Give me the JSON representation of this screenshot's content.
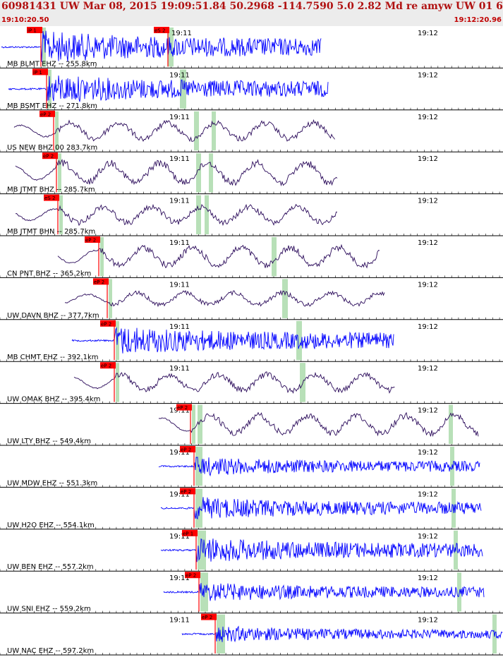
{
  "header": {
    "title": "60981431 UW Mar 08, 2015 19:09:51.84    50.2968 -114.7590  5.0 2.82 Md re amyw UW 01   6",
    "time_start": "19:10:20.50",
    "time_end": "19:12:20.96"
  },
  "colors": {
    "header_text": "#b01010",
    "trace_blue": "#0000ff",
    "trace_dark": "#2a0a5a",
    "pick": "#ff0000",
    "window": "#b8e0b8"
  },
  "minute_labels": {
    "m1": "19:11",
    "m2": "19:12"
  },
  "traces": [
    {
      "label": "MB BLMT EHZ -- 255.8km",
      "picks": [
        "iP 1",
        "eS 2"
      ],
      "color": "blue"
    },
    {
      "label": "MB BSMT EHZ -- 271.8km",
      "picks": [
        "iP 1"
      ],
      "color": "blue"
    },
    {
      "label": "US NEW BHZ 00 283.7km",
      "picks": [
        "eP 2"
      ],
      "color": "dark"
    },
    {
      "label": "MB JTMT BHZ -- 285.7km",
      "picks": [
        "eP 2"
      ],
      "color": "dark"
    },
    {
      "label": "MB JTMT BHN -- 285.7km",
      "picks": [
        "eS 2"
      ],
      "color": "dark"
    },
    {
      "label": "CN PNT BHZ -- 365.2km",
      "picks": [
        "eP 2"
      ],
      "color": "dark"
    },
    {
      "label": "UW DAVN BHZ -- 377.7km",
      "picks": [
        "eP 2"
      ],
      "color": "dark"
    },
    {
      "label": "MB CHMT EHZ -- 392.1km",
      "picks": [
        "eP 2"
      ],
      "color": "blue"
    },
    {
      "label": "UW OMAK BHZ -- 395.4km",
      "picks": [
        "eP 2"
      ],
      "color": "dark"
    },
    {
      "label": "UW LTY BHZ -- 549.4km",
      "picks": [
        "eP 2"
      ],
      "color": "dark"
    },
    {
      "label": "UW MDW EHZ -- 551.3km",
      "picks": [
        "eP 2"
      ],
      "color": "blue"
    },
    {
      "label": "UW H2O EHZ -- 554.1km",
      "picks": [
        "eP 2"
      ],
      "color": "blue"
    },
    {
      "label": "UW BEN EHZ -- 557.2km",
      "picks": [
        "eP 1"
      ],
      "color": "blue"
    },
    {
      "label": "UW SNI EHZ -- 559.2km",
      "picks": [
        "eP 2"
      ],
      "color": "blue"
    },
    {
      "label": "UW NAC EHZ -- 597.2km",
      "picks": [
        "eP 2"
      ],
      "color": "blue"
    }
  ]
}
